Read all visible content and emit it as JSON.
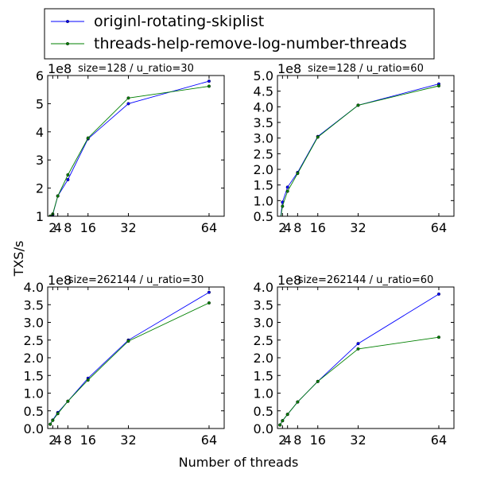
{
  "figure": {
    "ylabel": "TXS/s",
    "xlabel": "Number of threads",
    "legend": [
      {
        "name": "originl-rotating-skiplist",
        "color": "#0000ff"
      },
      {
        "name": "threads-help-remove-log-number-threads",
        "color": "#008000"
      }
    ]
  },
  "chart_data": [
    {
      "type": "line",
      "title": "size=128 / u_ratio=30",
      "multiplier": "1e8",
      "x": [
        1,
        2,
        4,
        8,
        16,
        32,
        64
      ],
      "xticks": [
        2,
        4,
        8,
        16,
        32,
        64
      ],
      "xlim": [
        0,
        70
      ],
      "ylim": [
        1,
        6
      ],
      "yticks": [
        1,
        2,
        3,
        4,
        5,
        6
      ],
      "ytick_labels": [
        "1",
        "2",
        "3",
        "4",
        "5",
        "6"
      ],
      "series": [
        {
          "name": "originl-rotating-skiplist",
          "color": "#0000ff",
          "values": [
            1.0,
            1.05,
            1.72,
            2.3,
            3.75,
            5.0,
            5.8
          ]
        },
        {
          "name": "threads-help-remove-log-number-threads",
          "color": "#008000",
          "values": [
            1.0,
            1.08,
            1.72,
            2.47,
            3.78,
            5.2,
            5.62
          ]
        }
      ]
    },
    {
      "type": "line",
      "title": "size=128 / u_ratio=60",
      "multiplier": "1e8",
      "x": [
        1,
        2,
        4,
        8,
        16,
        32,
        64
      ],
      "xticks": [
        2,
        4,
        8,
        16,
        32,
        64
      ],
      "xlim": [
        0,
        70
      ],
      "ylim": [
        0.5,
        5.0
      ],
      "yticks": [
        0.5,
        1.0,
        1.5,
        2.0,
        2.5,
        3.0,
        3.5,
        4.0,
        4.5,
        5.0
      ],
      "ytick_labels": [
        "0.5",
        "1.0",
        "1.5",
        "2.0",
        "2.5",
        "3.0",
        "3.5",
        "4.0",
        "4.5",
        "5.0"
      ],
      "series": [
        {
          "name": "originl-rotating-skiplist",
          "color": "#0000ff",
          "values": [
            0.3,
            0.95,
            1.43,
            1.9,
            3.05,
            4.05,
            4.73
          ]
        },
        {
          "name": "threads-help-remove-log-number-threads",
          "color": "#008000",
          "values": [
            0.3,
            0.82,
            1.3,
            1.87,
            3.03,
            4.05,
            4.67
          ]
        }
      ]
    },
    {
      "type": "line",
      "title": "size=262144 / u_ratio=30",
      "multiplier": "1e8",
      "x": [
        1,
        2,
        4,
        8,
        16,
        32,
        64
      ],
      "xticks": [
        2,
        4,
        8,
        16,
        32,
        64
      ],
      "xlim": [
        0,
        70
      ],
      "ylim": [
        0.0,
        4.0
      ],
      "yticks": [
        0.0,
        0.5,
        1.0,
        1.5,
        2.0,
        2.5,
        3.0,
        3.5,
        4.0
      ],
      "ytick_labels": [
        "0.0",
        "0.5",
        "1.0",
        "1.5",
        "2.0",
        "2.5",
        "3.0",
        "3.5",
        "4.0"
      ],
      "series": [
        {
          "name": "originl-rotating-skiplist",
          "color": "#0000ff",
          "values": [
            0.12,
            0.24,
            0.45,
            0.77,
            1.42,
            2.5,
            3.85
          ]
        },
        {
          "name": "threads-help-remove-log-number-threads",
          "color": "#008000",
          "values": [
            0.12,
            0.23,
            0.42,
            0.77,
            1.37,
            2.47,
            3.55
          ]
        }
      ]
    },
    {
      "type": "line",
      "title": "size=262144 / u_ratio=60",
      "multiplier": "1e8",
      "x": [
        1,
        2,
        4,
        8,
        16,
        32,
        64
      ],
      "xticks": [
        2,
        4,
        8,
        16,
        32,
        64
      ],
      "xlim": [
        0,
        70
      ],
      "ylim": [
        0.0,
        4.0
      ],
      "yticks": [
        0.0,
        0.5,
        1.0,
        1.5,
        2.0,
        2.5,
        3.0,
        3.5,
        4.0
      ],
      "ytick_labels": [
        "0.0",
        "0.5",
        "1.0",
        "1.5",
        "2.0",
        "2.5",
        "3.0",
        "3.5",
        "4.0"
      ],
      "series": [
        {
          "name": "originl-rotating-skiplist",
          "color": "#0000ff",
          "values": [
            0.1,
            0.22,
            0.4,
            0.75,
            1.33,
            2.4,
            3.8
          ]
        },
        {
          "name": "threads-help-remove-log-number-threads",
          "color": "#008000",
          "values": [
            0.1,
            0.22,
            0.4,
            0.75,
            1.33,
            2.25,
            2.58
          ]
        }
      ]
    }
  ]
}
